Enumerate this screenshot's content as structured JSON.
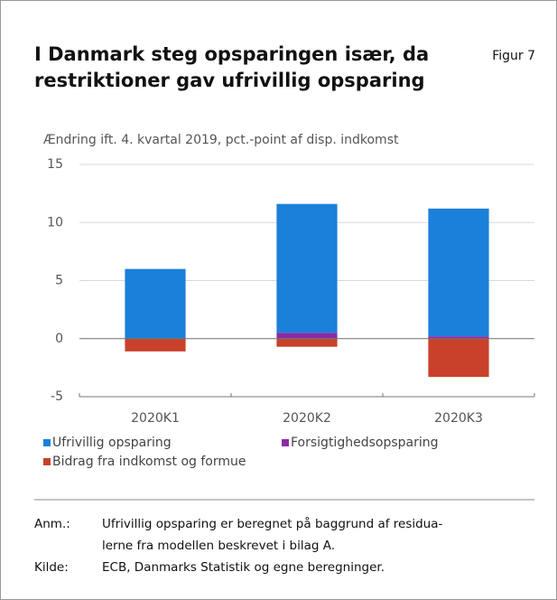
{
  "chart_data": {
    "type": "bar",
    "stacked": true,
    "title": [
      "I Danmark steg opsparingen især, da",
      "restriktioner gav ufrivillig opsparing"
    ],
    "figure_label": "Figur 7",
    "y_axis_label": "Ændring ift. 4. kvartal 2019, pct.-point af disp. indkomst",
    "categories": [
      "2020K1",
      "2020K2",
      "2020K3"
    ],
    "series": [
      {
        "name": "Ufrivillig opsparing",
        "color": "#1a80d9",
        "values": [
          6.0,
          11.1,
          11.0
        ]
      },
      {
        "name": "Forsigtighedsopsparing",
        "color": "#8b2ca6",
        "values": [
          0,
          0.5,
          0.2
        ]
      },
      {
        "name": "Bidrag fra indkomst og formue",
        "color": "#c9412a",
        "values": [
          -1.1,
          -0.7,
          -3.3
        ]
      }
    ],
    "ylim": [
      -5,
      15
    ],
    "yticks": [
      -5,
      0,
      5,
      10,
      15
    ],
    "grid": true
  },
  "notes": [
    {
      "label": "Anm.:",
      "lines": [
        "Ufrivillig opsparing er beregnet på baggrund af residua-",
        "lerne fra modellen beskrevet i bilag A."
      ]
    },
    {
      "label": "Kilde:",
      "lines": [
        "ECB, Danmarks Statistik og egne beregninger."
      ]
    }
  ]
}
